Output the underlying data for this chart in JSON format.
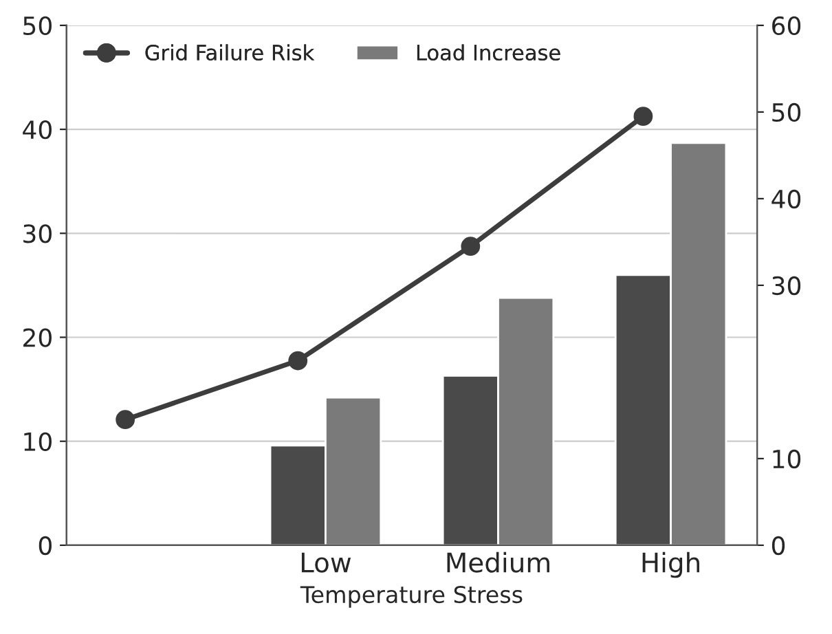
{
  "chart_data": {
    "type": "bar",
    "xlabel": "Temperature Stress",
    "categories": [
      null,
      "Low",
      "Medium",
      "High"
    ],
    "series": [
      {
        "color": "#4a4a4a",
        "values": [
          null,
          9.6,
          16.3,
          26
        ]
      },
      {
        "name": "Load Increase",
        "color": "#7a7a7a",
        "values": [
          null,
          14.2,
          23.8,
          38.7
        ]
      },
      {
        "name": "Grid Failure Risk",
        "type": "line",
        "axis": "y2",
        "color": "#3d3d3d",
        "marker": "circle",
        "values": [
          14.5,
          21.3,
          34.5,
          49.5
        ]
      }
    ],
    "ylim": [
      0,
      50
    ],
    "yticks": [
      0,
      10,
      20,
      30,
      40,
      50
    ],
    "y2lim": [
      0,
      60
    ],
    "y2ticks": [
      0,
      10,
      30,
      40,
      50,
      60
    ],
    "grid": "y",
    "legend": "top left"
  }
}
